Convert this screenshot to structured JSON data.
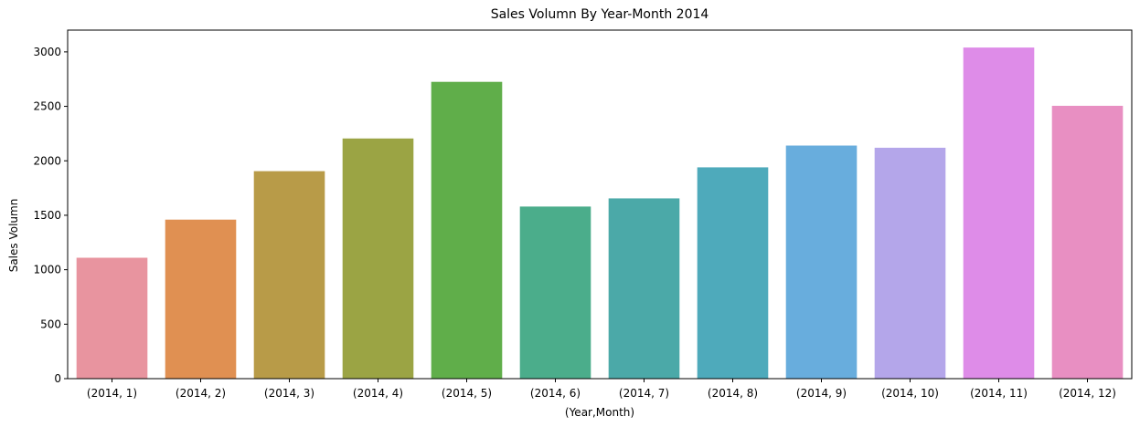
{
  "chart_data": {
    "type": "bar",
    "title": "Sales Volumn By Year-Month 2014",
    "xlabel": "(Year,Month)",
    "ylabel": "Sales Volumn",
    "categories": [
      "(2014, 1)",
      "(2014, 2)",
      "(2014, 3)",
      "(2014, 4)",
      "(2014, 5)",
      "(2014, 6)",
      "(2014, 7)",
      "(2014, 8)",
      "(2014, 9)",
      "(2014, 10)",
      "(2014, 11)",
      "(2014, 12)"
    ],
    "values": [
      1110,
      1460,
      1905,
      2205,
      2725,
      1580,
      1655,
      1940,
      2140,
      2120,
      3040,
      2505
    ],
    "colors": [
      "#e8949f",
      "#e09052",
      "#b89b48",
      "#9ba444",
      "#60ae4a",
      "#4bad8b",
      "#4ba9a8",
      "#4eaabb",
      "#68addd",
      "#b4a6ea",
      "#de8ce8",
      "#e88fc2"
    ],
    "ylim": [
      0,
      3200
    ],
    "yticks": [
      0,
      500,
      1000,
      1500,
      2000,
      2500,
      3000
    ],
    "grid": false,
    "legend": "none"
  }
}
